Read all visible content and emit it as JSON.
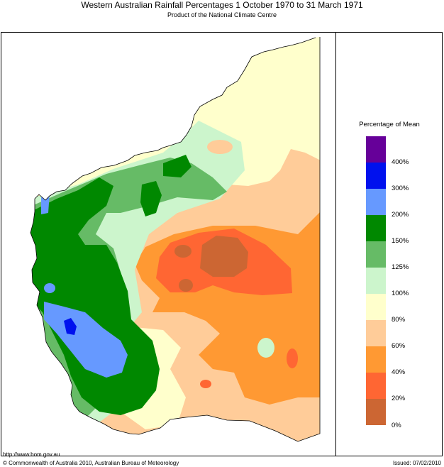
{
  "header": {
    "title": "Western Australian Rainfall Percentages 1 October 1970 to 31 March 1971",
    "subtitle": "Product of the National Climate Centre"
  },
  "legend": {
    "title": "Percentage of Mean",
    "bins": [
      {
        "label": "400%",
        "color": "#660099"
      },
      {
        "label": "300%",
        "color": "#0011ee"
      },
      {
        "label": "200%",
        "color": "#6699ff"
      },
      {
        "label": "150%",
        "color": "#008800"
      },
      {
        "label": "125%",
        "color": "#66bb66"
      },
      {
        "label": "100%",
        "color": "#ccf5cc"
      },
      {
        "label": "80%",
        "color": "#ffffcc"
      },
      {
        "label": "60%",
        "color": "#ffcc99"
      },
      {
        "label": "40%",
        "color": "#ff9933"
      },
      {
        "label": "20%",
        "color": "#ff6633"
      },
      {
        "label": "0%",
        "color": "#cc6633"
      }
    ]
  },
  "footer": {
    "url": "http://www.bom.gov.au",
    "copyright": "© Commonwealth of Australia 2010, Australian Bureau of Meteorology",
    "issued": "Issued: 07/02/2010"
  }
}
